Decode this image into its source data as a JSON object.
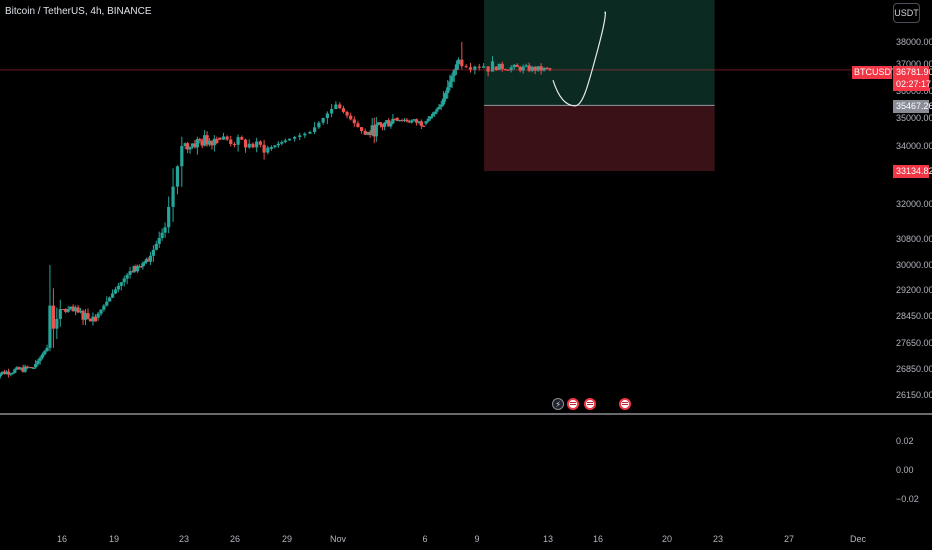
{
  "header": {
    "symbol_title": "Bitcoin / TetherUS, 4h, BINANCE",
    "currency_button": "USDT"
  },
  "price_scale": {
    "ticker_label": "BTCUSDT",
    "current_price_label": "36781.90",
    "countdown_label": "02:27:17",
    "entry_label": "35467.26",
    "stop_label": "33134.82",
    "tick_labels": [
      "38000.00",
      "37000.00",
      "36000.00",
      "35000.00",
      "34000.00",
      "33000.00",
      "32000.00",
      "30800.00",
      "30000.00",
      "29200.00",
      "28450.00",
      "27650.00",
      "26850.00",
      "26150.00"
    ]
  },
  "oscillator": {
    "tick_labels": [
      "0.02",
      "0.00",
      "−0.02"
    ]
  },
  "time_axis": {
    "labels": [
      "16",
      "19",
      "23",
      "26",
      "29",
      "Nov",
      "6",
      "9",
      "13",
      "16",
      "20",
      "23",
      "27",
      "Dec"
    ]
  },
  "events": [
    {
      "icon": "lightning-icon"
    },
    {
      "icon": "us-flag-icon"
    },
    {
      "icon": "us-flag-icon"
    },
    {
      "icon": "us-flag-icon"
    }
  ],
  "colors": {
    "up": "#26a69a",
    "down": "#ef5350",
    "profit_zone": "#0b2a22",
    "loss_zone": "#3a1116",
    "badge_red": "#f23645",
    "badge_gray": "#8a8d96"
  },
  "chart_data": {
    "type": "candlestick",
    "title": "Bitcoin / TetherUS, 4h, BINANCE",
    "interval": "4h",
    "x_type": "date",
    "ylim": [
      25900,
      38600
    ],
    "current_price": 36781.9,
    "position": {
      "type": "long",
      "entry": 35467.26,
      "stop": 33134.82,
      "target": 39400
    },
    "key_levels": [
      {
        "segment": "2023-10-12",
        "start": 26700,
        "end": 26900,
        "low": 26550,
        "high": 27050,
        "n": 20,
        "style": "flat"
      },
      {
        "segment": "2023-10-15",
        "start": 26900,
        "end": 27500,
        "low": 26800,
        "high": 27800,
        "n": 6,
        "style": "trend"
      },
      {
        "segment": "2023-10-16",
        "start": 27500,
        "end": 28650,
        "low": 27400,
        "high": 30000,
        "n": 4,
        "style": "spike"
      },
      {
        "segment": "2023-10-17",
        "start": 28650,
        "end": 28400,
        "low": 28100,
        "high": 29000,
        "n": 14,
        "style": "flat"
      },
      {
        "segment": "2023-10-19",
        "start": 28400,
        "end": 29800,
        "low": 28300,
        "high": 30000,
        "n": 12,
        "style": "trend"
      },
      {
        "segment": "2023-10-21",
        "start": 29800,
        "end": 30100,
        "low": 29600,
        "high": 30400,
        "n": 10,
        "style": "flat"
      },
      {
        "segment": "2023-10-22",
        "start": 30100,
        "end": 31200,
        "low": 30000,
        "high": 31600,
        "n": 6,
        "style": "trend"
      },
      {
        "segment": "2023-10-23",
        "start": 31200,
        "end": 34000,
        "low": 31000,
        "high": 35100,
        "n": 4,
        "style": "trend"
      },
      {
        "segment": "2023-10-24",
        "start": 34000,
        "end": 34300,
        "low": 33600,
        "high": 35000,
        "n": 14,
        "style": "flat"
      },
      {
        "segment": "2023-10-26",
        "start": 34300,
        "end": 33900,
        "low": 33500,
        "high": 34700,
        "n": 14,
        "style": "flat"
      },
      {
        "segment": "2023-10-29",
        "start": 33900,
        "end": 34500,
        "low": 33700,
        "high": 34800,
        "n": 10,
        "style": "trend"
      },
      {
        "segment": "2023-10-31",
        "start": 34500,
        "end": 35500,
        "low": 34200,
        "high": 35900,
        "n": 6,
        "style": "trend"
      },
      {
        "segment": "2023-11-01",
        "start": 35500,
        "end": 34400,
        "low": 34200,
        "high": 35700,
        "n": 8,
        "style": "trend"
      },
      {
        "segment": "2023-11-03",
        "start": 34400,
        "end": 35000,
        "low": 34100,
        "high": 35400,
        "n": 14,
        "style": "flat"
      },
      {
        "segment": "2023-11-05",
        "start": 35000,
        "end": 34800,
        "low": 34600,
        "high": 35300,
        "n": 12,
        "style": "flat"
      },
      {
        "segment": "2023-11-07",
        "start": 34800,
        "end": 35500,
        "low": 34600,
        "high": 35800,
        "n": 8,
        "style": "trend"
      },
      {
        "segment": "2023-11-08",
        "start": 35500,
        "end": 37200,
        "low": 35300,
        "high": 37700,
        "n": 8,
        "style": "trend"
      },
      {
        "segment": "2023-11-09",
        "start": 37200,
        "end": 36900,
        "low": 36300,
        "high": 38000,
        "n": 8,
        "style": "flat"
      },
      {
        "segment": "2023-11-11",
        "start": 36900,
        "end": 36781.9,
        "low": 36500,
        "high": 37200,
        "n": 19,
        "style": "flat"
      }
    ],
    "oscillator": {
      "ylim": [
        -0.03,
        0.03
      ]
    }
  }
}
